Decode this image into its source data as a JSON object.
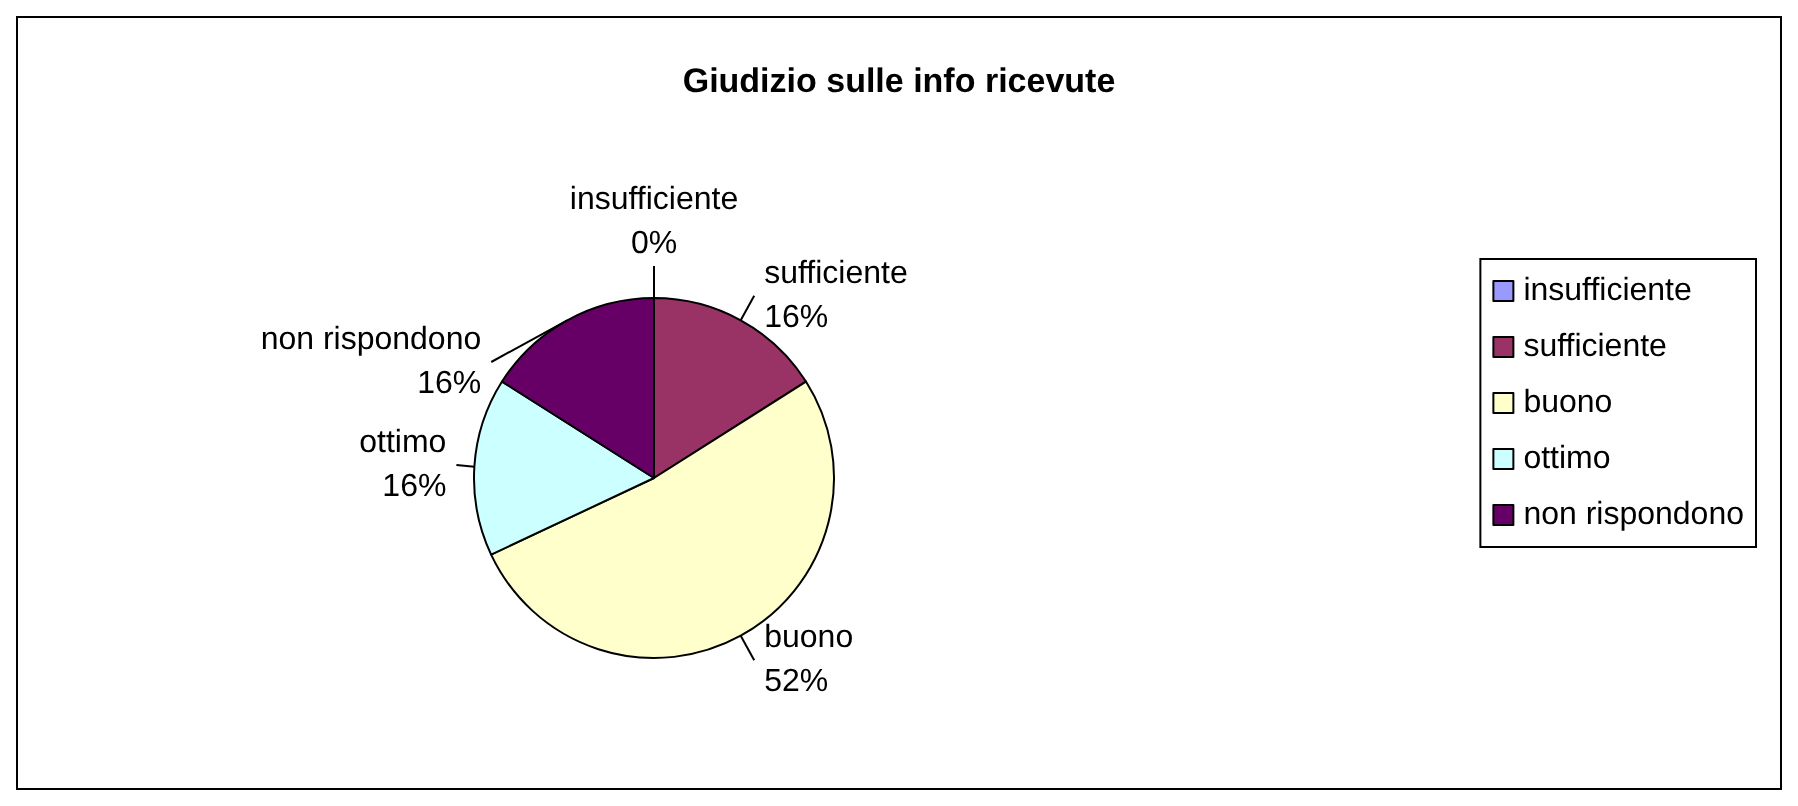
{
  "chart_data": {
    "type": "pie",
    "title": "Giudizio sulle info ricevute",
    "categories": [
      "insufficiente",
      "sufficiente",
      "buono",
      "ottimo",
      "non rispondono"
    ],
    "values": [
      0,
      16,
      52,
      16,
      16
    ],
    "colors": [
      "#9999ff",
      "#993366",
      "#ffffcc",
      "#ccffff",
      "#660066"
    ],
    "value_labels": [
      "0%",
      "16%",
      "52%",
      "16%",
      "16%"
    ],
    "legend": "right"
  }
}
